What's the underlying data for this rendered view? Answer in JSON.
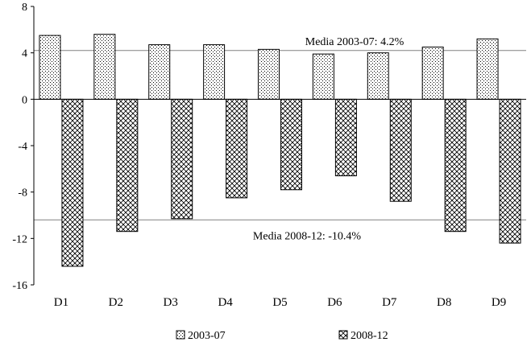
{
  "chart_data": {
    "type": "bar",
    "categories": [
      "D1",
      "D2",
      "D3",
      "D4",
      "D5",
      "D6",
      "D7",
      "D8",
      "D9"
    ],
    "series": [
      {
        "name": "2003-07",
        "values": [
          5.5,
          5.6,
          4.7,
          4.7,
          4.3,
          3.9,
          4.0,
          4.5,
          5.2
        ],
        "pattern": "dots"
      },
      {
        "name": "2008-12",
        "values": [
          -14.4,
          -11.4,
          -10.3,
          -8.5,
          -7.8,
          -6.6,
          -8.8,
          -11.4,
          -12.4
        ],
        "pattern": "crosshatch"
      }
    ],
    "ylim": [
      -16,
      8
    ],
    "yticks": [
      8,
      4,
      0,
      -4,
      -8,
      -12,
      -16
    ],
    "reference_lines": [
      {
        "value": 4.2,
        "label": "Media 2003-07: 4.2%"
      },
      {
        "value": -10.4,
        "label": "Media 2008-12: -10.4%"
      }
    ],
    "title": "",
    "xlabel": "",
    "ylabel": "",
    "legend_position": "bottom",
    "colors": {
      "bar_stroke": "#000000",
      "pattern_ink": "#000000",
      "reference_line": "#808080"
    }
  }
}
